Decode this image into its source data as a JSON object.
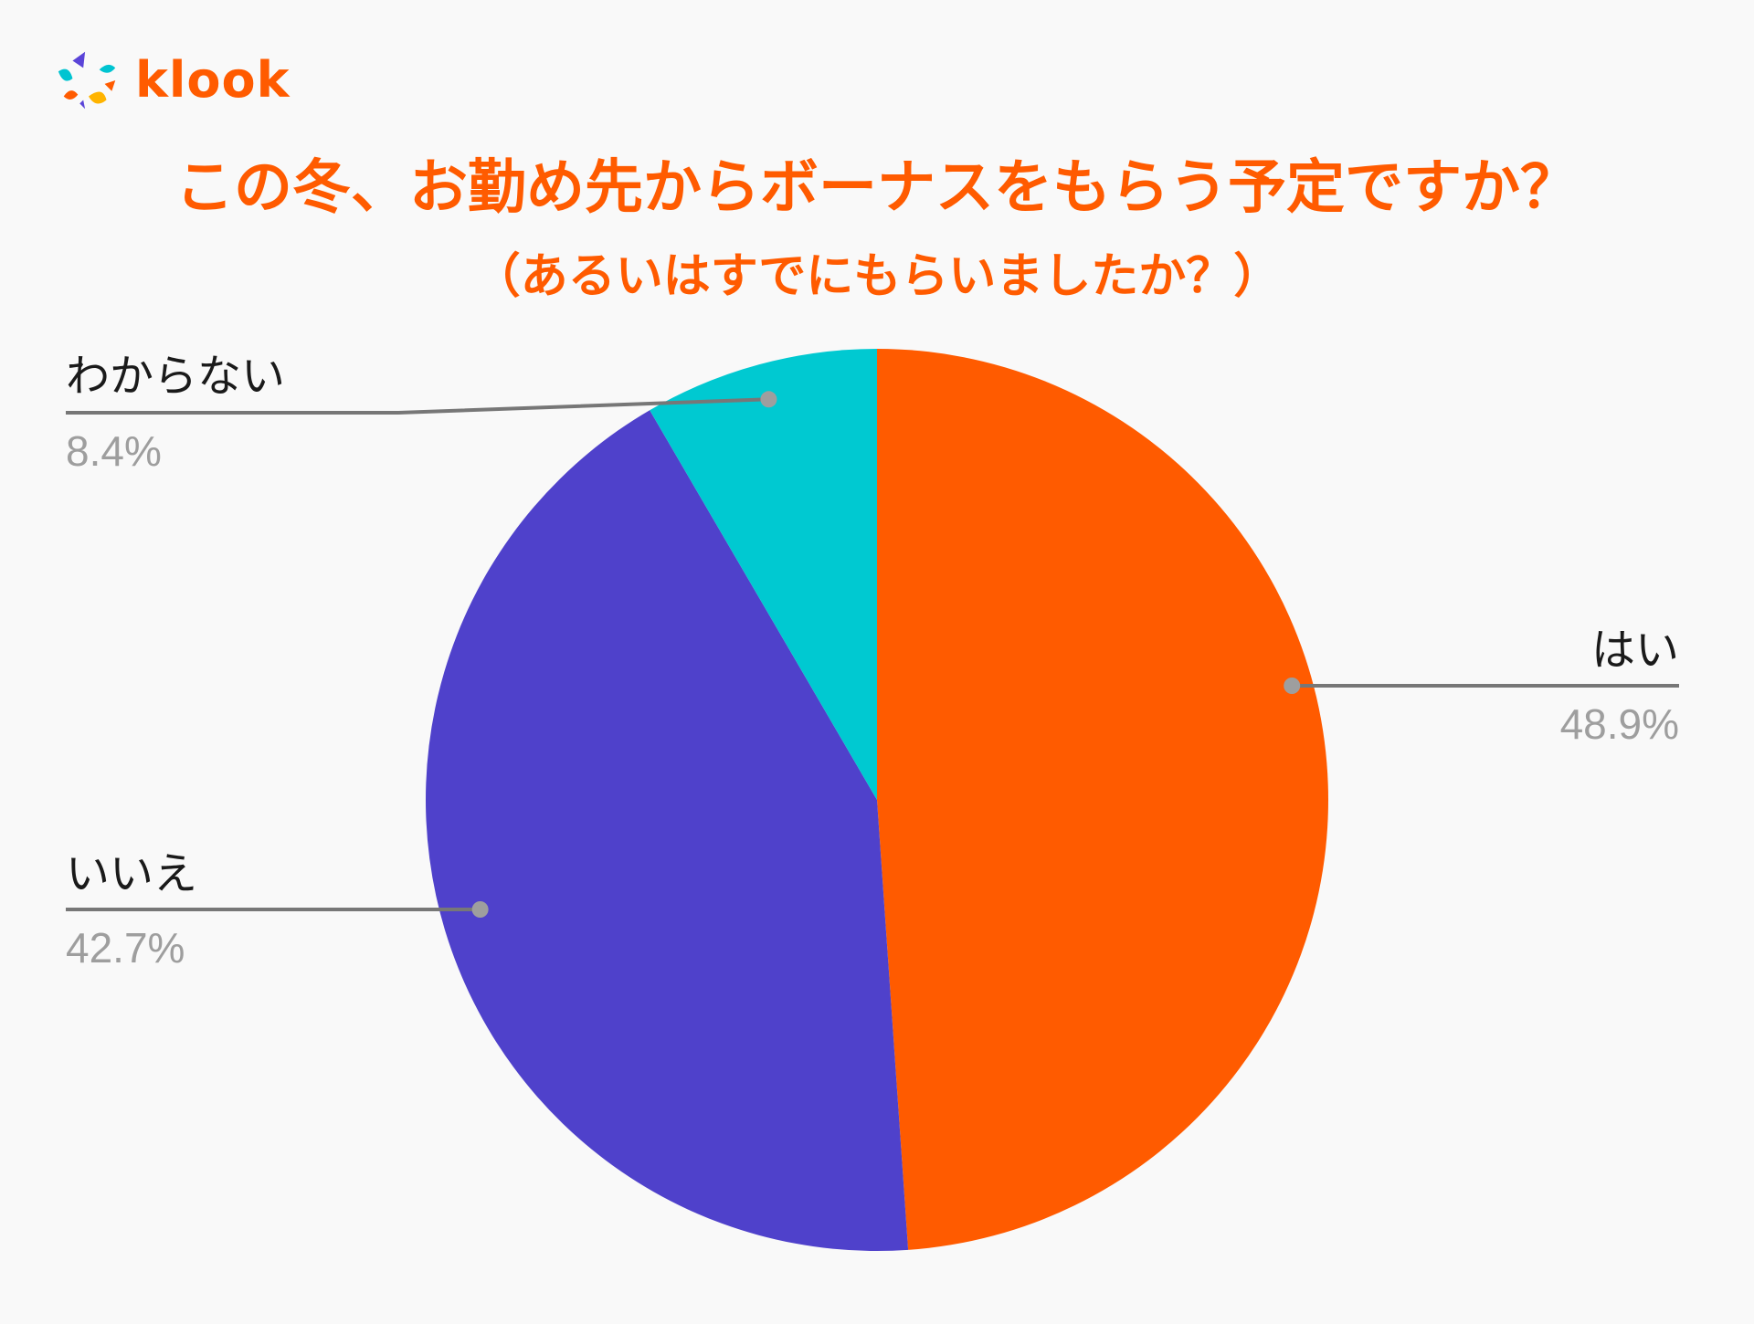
{
  "brand": {
    "name": "klook",
    "color": "#ff5b00",
    "logo_colors": [
      "#5a44d8",
      "#00c4d1",
      "#ff5b00",
      "#ffb400"
    ]
  },
  "chart_data": {
    "type": "pie",
    "title": "この冬、お勤め先からボーナスをもらう予定ですか？",
    "subtitle": "（あるいはすでにもらいましたか？）",
    "unit": "%",
    "slices": [
      {
        "label": "はい",
        "value": 48.9,
        "display": "48.9%",
        "color": "#ff5b00"
      },
      {
        "label": "いいえ",
        "value": 42.7,
        "display": "42.7%",
        "color": "#4f41cb"
      },
      {
        "label": "わからない",
        "value": 8.4,
        "display": "8.4%",
        "color": "#00c9d1"
      }
    ],
    "start_angle_deg": 0,
    "direction": "clockwise",
    "label_style": "leader-lines"
  },
  "colors": {
    "background": "#f9f9f9",
    "title": "#ff5b00",
    "label_text": "#1a1a1a",
    "value_text": "#9e9e9e",
    "leader_line": "#777777",
    "leader_dot": "#9e9e9e"
  }
}
